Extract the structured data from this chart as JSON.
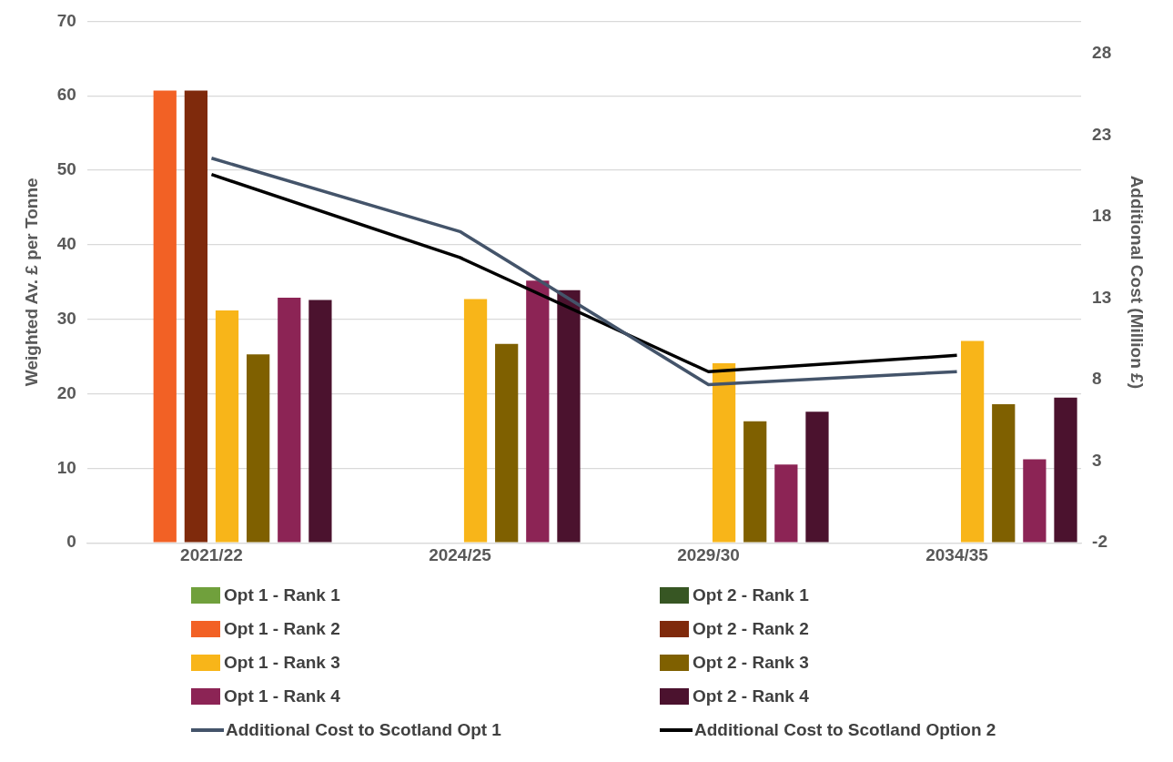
{
  "chart_data": {
    "type": "bar",
    "ylabel": "Weighted Av. £ per Tonne",
    "y2label": "Additional Cost (Million £)",
    "categories": [
      "2021/22",
      "2024/25",
      "2029/30",
      "2034/35"
    ],
    "series": [
      {
        "name": "Opt 1 - Rank 1",
        "color": "#70a03c",
        "values": [
          null,
          null,
          null,
          null
        ]
      },
      {
        "name": "Opt 2 - Rank 1",
        "color": "#375623",
        "values": [
          null,
          null,
          null,
          null
        ]
      },
      {
        "name": "Opt 1 - Rank 2",
        "color": "#f26125",
        "values": [
          60.7,
          null,
          null,
          null
        ]
      },
      {
        "name": "Opt 2 - Rank 2",
        "color": "#7f2a0c",
        "values": [
          60.7,
          null,
          null,
          null
        ]
      },
      {
        "name": "Opt 1 - Rank 3",
        "color": "#f8b519",
        "values": [
          31.2,
          32.7,
          24.1,
          27.1
        ]
      },
      {
        "name": "Opt 2 - Rank 3",
        "color": "#7f6000",
        "values": [
          25.3,
          26.7,
          16.3,
          18.6
        ]
      },
      {
        "name": "Opt 1 - Rank 4",
        "color": "#8c2455",
        "values": [
          32.9,
          35.2,
          10.5,
          11.2
        ]
      },
      {
        "name": "Opt 2 - Rank 4",
        "color": "#4b122e",
        "values": [
          32.6,
          33.9,
          17.6,
          19.5
        ]
      },
      {
        "name": "Additional Cost to Scotland Opt 1",
        "type": "line",
        "axis": "y2",
        "color": "#44546a",
        "values": [
          21.6,
          17.1,
          7.7,
          8.5
        ]
      },
      {
        "name": "Additional Cost to Scotland Option 2",
        "type": "line",
        "axis": "y2",
        "color": "#000000",
        "values": [
          20.6,
          15.5,
          8.5,
          9.5
        ]
      }
    ],
    "ylim": [
      0,
      70
    ],
    "yticks": [
      0,
      10,
      20,
      30,
      40,
      50,
      60,
      70
    ],
    "y2lim": [
      -2,
      30
    ],
    "y2ticks": [
      -2,
      3,
      8,
      13,
      18,
      23,
      28
    ],
    "grid": "y",
    "legend": "bottom",
    "marker": "none"
  }
}
